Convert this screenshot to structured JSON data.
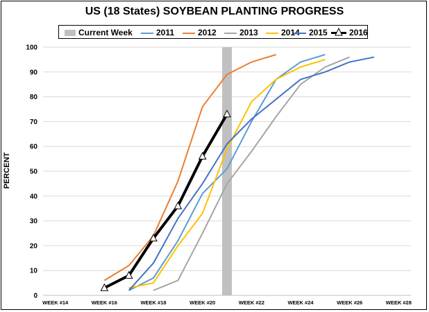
{
  "chart_data": {
    "type": "line",
    "title": "US (18 States) SOYBEAN PLANTING PROGRESS",
    "ylabel": "PERCENT",
    "xlabel": "",
    "ylim": [
      0,
      100
    ],
    "yticks": [
      0,
      10,
      20,
      30,
      40,
      50,
      60,
      70,
      80,
      90,
      100
    ],
    "xlim": [
      13.5,
      28.5
    ],
    "xticks": [
      {
        "week": 14,
        "label": "WEEK #14"
      },
      {
        "week": 16,
        "label": "WEEK #16"
      },
      {
        "week": 18,
        "label": "WEEK #18"
      },
      {
        "week": 20,
        "label": "WEEK #20"
      },
      {
        "week": 22,
        "label": "WEEK #22"
      },
      {
        "week": 24,
        "label": "WEEK #24"
      },
      {
        "week": 26,
        "label": "WEEK #26"
      },
      {
        "week": 28,
        "label": "WEEK #28"
      }
    ],
    "grid": true,
    "legend_position": "top",
    "current_week": {
      "name": "Current Week",
      "week": 21,
      "color": "#c0c0c0"
    },
    "series": [
      {
        "name": "2011",
        "color": "#5b9bd5",
        "points": [
          [
            17,
            2
          ],
          [
            18,
            7
          ],
          [
            19,
            22
          ],
          [
            20,
            41
          ],
          [
            21,
            51
          ],
          [
            22,
            70
          ],
          [
            23,
            87
          ],
          [
            24,
            94
          ],
          [
            25,
            97
          ]
        ]
      },
      {
        "name": "2012",
        "color": "#ed7d31",
        "points": [
          [
            16,
            6
          ],
          [
            17,
            12
          ],
          [
            18,
            24
          ],
          [
            19,
            46
          ],
          [
            20,
            76
          ],
          [
            21,
            89
          ],
          [
            22,
            94
          ],
          [
            23,
            97
          ]
        ]
      },
      {
        "name": "2013",
        "color": "#a5a5a5",
        "points": [
          [
            18,
            2
          ],
          [
            19,
            6
          ],
          [
            20,
            25
          ],
          [
            21,
            45
          ],
          [
            22,
            58
          ],
          [
            23,
            72
          ],
          [
            24,
            85
          ],
          [
            25,
            92
          ],
          [
            26,
            96
          ]
        ]
      },
      {
        "name": "2014",
        "color": "#ffc000",
        "points": [
          [
            17,
            3
          ],
          [
            18,
            5
          ],
          [
            19,
            20
          ],
          [
            20,
            33
          ],
          [
            21,
            59
          ],
          [
            22,
            78
          ],
          [
            23,
            87
          ],
          [
            24,
            92
          ],
          [
            25,
            95
          ]
        ]
      },
      {
        "name": "2015",
        "color": "#4472c4",
        "points": [
          [
            17,
            2
          ],
          [
            18,
            13
          ],
          [
            19,
            31
          ],
          [
            20,
            45
          ],
          [
            21,
            61
          ],
          [
            22,
            71
          ],
          [
            23,
            79
          ],
          [
            24,
            87
          ],
          [
            25,
            90
          ],
          [
            26,
            94
          ],
          [
            27,
            96
          ]
        ]
      },
      {
        "name": "2016",
        "color": "#000000",
        "marker": "triangle",
        "points": [
          [
            16,
            3
          ],
          [
            17,
            8
          ],
          [
            18,
            23
          ],
          [
            19,
            36
          ],
          [
            20,
            56
          ],
          [
            21,
            73
          ]
        ]
      }
    ]
  }
}
